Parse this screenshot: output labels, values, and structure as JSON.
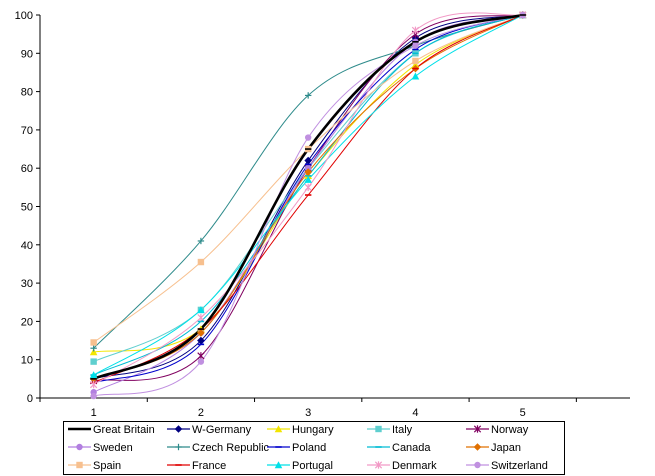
{
  "chart_data": {
    "type": "line",
    "title": "",
    "xlabel": "",
    "ylabel": "",
    "x": [
      1,
      2,
      3,
      4,
      5
    ],
    "ylim": [
      0,
      100
    ],
    "yticks": [
      0,
      10,
      20,
      30,
      40,
      50,
      60,
      70,
      80,
      90,
      100
    ],
    "xticks": [
      1,
      2,
      3,
      4,
      5
    ],
    "grid": false,
    "legend_position": "bottom",
    "series": [
      {
        "name": "Great Britain",
        "color": "#000000",
        "marker": "dash",
        "values": [
          5,
          18,
          65,
          93,
          100
        ]
      },
      {
        "name": "W-Germany",
        "color": "#000080",
        "marker": "diamond",
        "values": [
          5,
          15,
          62,
          94,
          100
        ]
      },
      {
        "name": "Hungary",
        "color": "#f2e600",
        "marker": "triangle",
        "values": [
          12,
          18,
          58,
          87,
          100
        ]
      },
      {
        "name": "Italy",
        "color": "#5fcfcf",
        "marker": "square",
        "values": [
          9.5,
          23,
          60,
          90,
          100
        ]
      },
      {
        "name": "Norway",
        "color": "#800060",
        "marker": "star",
        "values": [
          4.5,
          11,
          60,
          95,
          100
        ]
      },
      {
        "name": "Sweden",
        "color": "#b27fe0",
        "marker": "circle",
        "values": [
          1.5,
          17,
          60,
          93,
          100
        ]
      },
      {
        "name": "Czech Republic",
        "color": "#2e8b8b",
        "marker": "plus",
        "values": [
          13,
          41,
          79,
          92,
          100
        ]
      },
      {
        "name": "Poland",
        "color": "#0000cc",
        "marker": "dash",
        "values": [
          4,
          14,
          61,
          91,
          100
        ]
      },
      {
        "name": "Canada",
        "color": "#00bcd4",
        "marker": "dash",
        "values": [
          6,
          20,
          58,
          90,
          100
        ]
      },
      {
        "name": "Japan",
        "color": "#e07000",
        "marker": "diamond",
        "values": [
          5,
          17,
          59,
          86,
          100
        ]
      },
      {
        "name": "Spain",
        "color": "#f7c08f",
        "marker": "square",
        "values": [
          14.5,
          35.5,
          65,
          88,
          100
        ]
      },
      {
        "name": "France",
        "color": "#e00000",
        "marker": "dash",
        "values": [
          4,
          18,
          53,
          86,
          100
        ]
      },
      {
        "name": "Portugal",
        "color": "#00e0e8",
        "marker": "triangle",
        "values": [
          6,
          23,
          57,
          84,
          100
        ]
      },
      {
        "name": "Denmark",
        "color": "#f29ac6",
        "marker": "star",
        "values": [
          3.5,
          21,
          55,
          96,
          100
        ]
      },
      {
        "name": "Switzerland",
        "color": "#c090e0",
        "marker": "circle",
        "values": [
          0.5,
          9.5,
          68,
          92,
          100
        ]
      }
    ]
  }
}
